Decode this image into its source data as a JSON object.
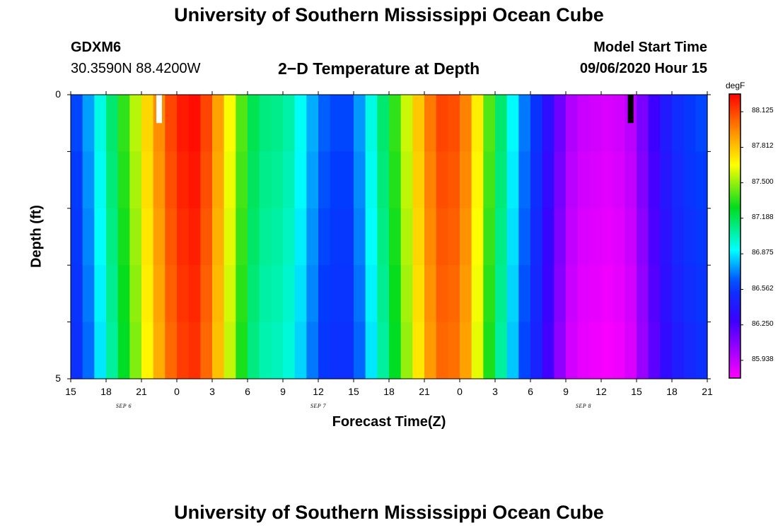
{
  "header": {
    "title_top": "University of Southern Mississippi Ocean Cube",
    "station_id": "GDXM6",
    "station_coords": "30.3590N 88.4200W",
    "model_start_label": "Model Start Time",
    "model_start_value": "09/06/2020 Hour 15",
    "title_bottom": "University of Southern Mississippi Ocean Cube"
  },
  "chart_data": {
    "type": "heatmap",
    "title": "2−D Temperature at Depth",
    "xlabel": "Forecast Time(Z)",
    "ylabel": "Depth (ft)",
    "x_range_hours": [
      0,
      54
    ],
    "x_note": "hours since 09/06/2020 15Z",
    "x_tick_labels": [
      "15",
      "18",
      "21",
      "0",
      "3",
      "6",
      "9",
      "12",
      "15",
      "18",
      "21",
      "0",
      "3",
      "6",
      "9",
      "12",
      "15",
      "18",
      "21"
    ],
    "date_labels": [
      {
        "text": "SEP 6",
        "hour": 4.5
      },
      {
        "text": "SEP 7",
        "hour": 21
      },
      {
        "text": "SEP 8",
        "hour": 43.5
      }
    ],
    "y_range": [
      0,
      5
    ],
    "y_tick_labels": [
      "0",
      "5"
    ],
    "y_minor_ticks": [
      1,
      2,
      3,
      4
    ],
    "depth_levels": 5,
    "colorbar": {
      "unit": "degF",
      "min": 85.782,
      "max": 88.281,
      "tick_values": [
        88.125,
        87.812,
        87.5,
        87.188,
        86.875,
        86.562,
        86.25,
        85.938
      ],
      "tick_labels": [
        "88.125",
        "87.812",
        "87.500",
        "87.188",
        "86.875",
        "86.562",
        "86.250",
        "85.938"
      ]
    },
    "temperature_by_hour": [
      [
        0,
        86.62
      ],
      [
        1,
        86.76
      ],
      [
        2,
        86.95
      ],
      [
        3,
        87.15
      ],
      [
        4,
        87.35
      ],
      [
        5,
        87.55
      ],
      [
        6,
        87.76
      ],
      [
        7,
        87.95
      ],
      [
        8,
        88.12
      ],
      [
        9,
        88.22
      ],
      [
        10,
        88.25
      ],
      [
        11,
        88.12
      ],
      [
        12,
        87.9
      ],
      [
        13,
        87.65
      ],
      [
        14,
        87.4
      ],
      [
        15,
        87.2
      ],
      [
        16,
        87.12
      ],
      [
        17,
        87.1
      ],
      [
        18,
        87.05
      ],
      [
        19,
        86.92
      ],
      [
        20,
        86.78
      ],
      [
        21,
        86.66
      ],
      [
        22,
        86.62
      ],
      [
        23,
        86.62
      ],
      [
        24,
        86.75
      ],
      [
        25,
        86.95
      ],
      [
        26,
        87.15
      ],
      [
        27,
        87.35
      ],
      [
        28,
        87.58
      ],
      [
        29,
        87.8
      ],
      [
        30,
        88.0
      ],
      [
        31,
        88.12
      ],
      [
        32,
        88.1
      ],
      [
        33,
        87.98
      ],
      [
        34,
        87.7
      ],
      [
        35,
        87.4
      ],
      [
        36,
        87.15
      ],
      [
        37,
        86.9
      ],
      [
        38,
        86.7
      ],
      [
        39,
        86.55
      ],
      [
        40,
        86.35
      ],
      [
        41,
        86.15
      ],
      [
        42,
        85.98
      ],
      [
        43,
        85.92
      ],
      [
        44,
        85.9
      ],
      [
        45,
        85.88
      ],
      [
        46,
        85.9
      ],
      [
        47,
        85.96
      ],
      [
        48,
        86.12
      ],
      [
        49,
        86.28
      ],
      [
        50,
        86.42
      ],
      [
        51,
        86.52
      ],
      [
        52,
        86.58
      ],
      [
        53,
        86.62
      ],
      [
        54,
        86.62
      ]
    ],
    "missing_markers": [
      {
        "hour": 7.5,
        "depth_from": 0,
        "depth_to": 0.5,
        "color": "#ffffff"
      },
      {
        "hour": 47.5,
        "depth_from": 0,
        "depth_to": 0.5,
        "color": "#000000"
      }
    ]
  }
}
